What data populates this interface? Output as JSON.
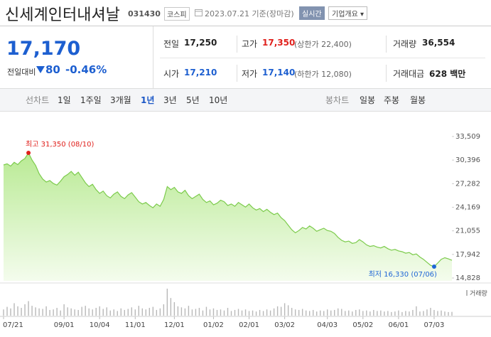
{
  "header": {
    "title": "신세계인터내셔날",
    "code": "031430",
    "market": "코스피",
    "date": "2023.07.21 기준(장마감)",
    "realtime": "실시간",
    "company_info": "기업개요"
  },
  "price": {
    "current": "17,170",
    "change_label": "전일대비",
    "change": "80",
    "change_rate": "-0.46%"
  },
  "stats": [
    {
      "label": "전일",
      "value": "17,250"
    },
    {
      "label": "고가",
      "value": "17,350",
      "note": "(상한가 22,400)"
    },
    {
      "label": "거래량",
      "value": "36,554"
    },
    {
      "label": "시가",
      "value": "17,210"
    },
    {
      "label": "저가",
      "value": "17,140",
      "note": "(하한가 12,080)"
    },
    {
      "label": "거래대금",
      "value": "628 백만"
    }
  ],
  "tabs": {
    "line_label": "선차트",
    "line": [
      "1일",
      "1주일",
      "3개월",
      "1년",
      "3년",
      "5년",
      "10년"
    ],
    "active_tab": 3,
    "candle_label": "봉차트",
    "candle": [
      "일봉",
      "주봉",
      "월봉"
    ]
  },
  "chart_data": {
    "type": "line",
    "categories": [
      "07/21",
      null,
      null,
      null,
      null,
      null,
      null,
      null,
      null,
      null,
      null,
      null,
      null,
      null,
      null,
      null,
      null,
      "09/01",
      null,
      null,
      null,
      null,
      null,
      null,
      null,
      null,
      null,
      "10/04",
      null,
      null,
      null,
      null,
      null,
      null,
      null,
      null,
      null,
      "11/01",
      null,
      null,
      null,
      null,
      null,
      null,
      null,
      null,
      null,
      null,
      "12/01",
      null,
      null,
      null,
      null,
      null,
      null,
      null,
      null,
      null,
      null,
      "01/02",
      null,
      null,
      null,
      null,
      null,
      null,
      null,
      null,
      null,
      "02/01",
      null,
      null,
      null,
      null,
      null,
      null,
      null,
      null,
      null,
      "03/02",
      null,
      null,
      null,
      null,
      null,
      null,
      null,
      null,
      null,
      null,
      null,
      "04/03",
      null,
      null,
      null,
      null,
      null,
      null,
      null,
      null,
      null,
      "05/02",
      null,
      null,
      null,
      null,
      null,
      null,
      null,
      null,
      null,
      "06/01",
      null,
      null,
      null,
      null,
      null,
      null,
      null,
      null,
      null,
      "07/03",
      null,
      null,
      null,
      null,
      null
    ],
    "values": [
      29750,
      29900,
      29600,
      30100,
      29800,
      30300,
      30600,
      31350,
      30400,
      29700,
      28600,
      27900,
      27500,
      27700,
      27300,
      27100,
      27600,
      28200,
      28500,
      28900,
      28400,
      28800,
      28100,
      27400,
      26900,
      27200,
      26500,
      26000,
      26300,
      25700,
      25400,
      25900,
      26200,
      25600,
      25300,
      25800,
      26100,
      25500,
      24900,
      24600,
      24800,
      24400,
      24100,
      24600,
      24300,
      25200,
      26900,
      26500,
      26800,
      26200,
      26000,
      26400,
      25700,
      25300,
      25600,
      25900,
      25200,
      24800,
      25000,
      24500,
      24700,
      25100,
      24900,
      24400,
      24600,
      24300,
      24800,
      24500,
      24200,
      24600,
      24100,
      23800,
      24000,
      23600,
      23900,
      23500,
      23200,
      23400,
      22800,
      22400,
      21800,
      21200,
      20800,
      21100,
      21500,
      21300,
      21700,
      21400,
      21000,
      21200,
      21400,
      21100,
      21000,
      20700,
      20200,
      19800,
      19600,
      19700,
      19400,
      19500,
      19900,
      19600,
      19200,
      19000,
      19100,
      18900,
      18800,
      19000,
      18700,
      18500,
      18600,
      18400,
      18300,
      18100,
      18200,
      17900,
      18000,
      17600,
      17300,
      16900,
      16500,
      16330,
      16800,
      17300,
      17500,
      17350,
      17170
    ],
    "color": "#7ccb4c",
    "ylim": [
      14828,
      33509
    ],
    "yticks": [
      {
        "value": 14828,
        "label": "14,828"
      },
      {
        "value": 17942,
        "label": "17,942"
      },
      {
        "value": 21055,
        "label": "21,055"
      },
      {
        "value": 24169,
        "label": "24,169"
      },
      {
        "value": 27282,
        "label": "27,282"
      },
      {
        "value": 30396,
        "label": "30,396"
      },
      {
        "value": 33509,
        "label": "33,509"
      }
    ],
    "high": {
      "index": 7,
      "label": "최고 31,350 (08/10)",
      "color": "#e0201c"
    },
    "low": {
      "index": 121,
      "label": "최저 16,330 (07/06)",
      "color": "#1f66d6"
    },
    "volume": {
      "name": "거래량",
      "color": "#b8b8b8",
      "values": [
        60000,
        85000,
        70000,
        120000,
        90000,
        75000,
        110000,
        140000,
        95000,
        80000,
        70000,
        65000,
        90000,
        55000,
        60000,
        75000,
        50000,
        110000,
        80000,
        70000,
        60000,
        55000,
        85000,
        95000,
        70000,
        60000,
        75000,
        90000,
        65000,
        80000,
        50000,
        60000,
        45000,
        70000,
        55000,
        65000,
        80000,
        60000,
        95000,
        70000,
        60000,
        75000,
        85000,
        55000,
        70000,
        110000,
        260000,
        170000,
        130000,
        90000,
        80000,
        70000,
        95000,
        60000,
        65000,
        75000,
        50000,
        85000,
        60000,
        70000,
        55000,
        60000,
        50000,
        75000,
        45000,
        55000,
        65000,
        50000,
        60000,
        45000,
        50000,
        40000,
        55000,
        45000,
        60000,
        50000,
        70000,
        90000,
        85000,
        120000,
        100000,
        75000,
        60000,
        55000,
        65000,
        50000,
        45000,
        55000,
        40000,
        50000,
        45000,
        60000,
        50000,
        55000,
        70000,
        65000,
        45000,
        50000,
        40000,
        55000,
        60000,
        45000,
        50000,
        40000,
        55000,
        45000,
        50000,
        40000,
        45000,
        35000,
        40000,
        50000,
        35000,
        45000,
        40000,
        55000,
        90000,
        40000,
        45000,
        60000,
        75000,
        55000,
        45000,
        50000,
        40000,
        35000,
        36554
      ]
    },
    "grid": false
  }
}
